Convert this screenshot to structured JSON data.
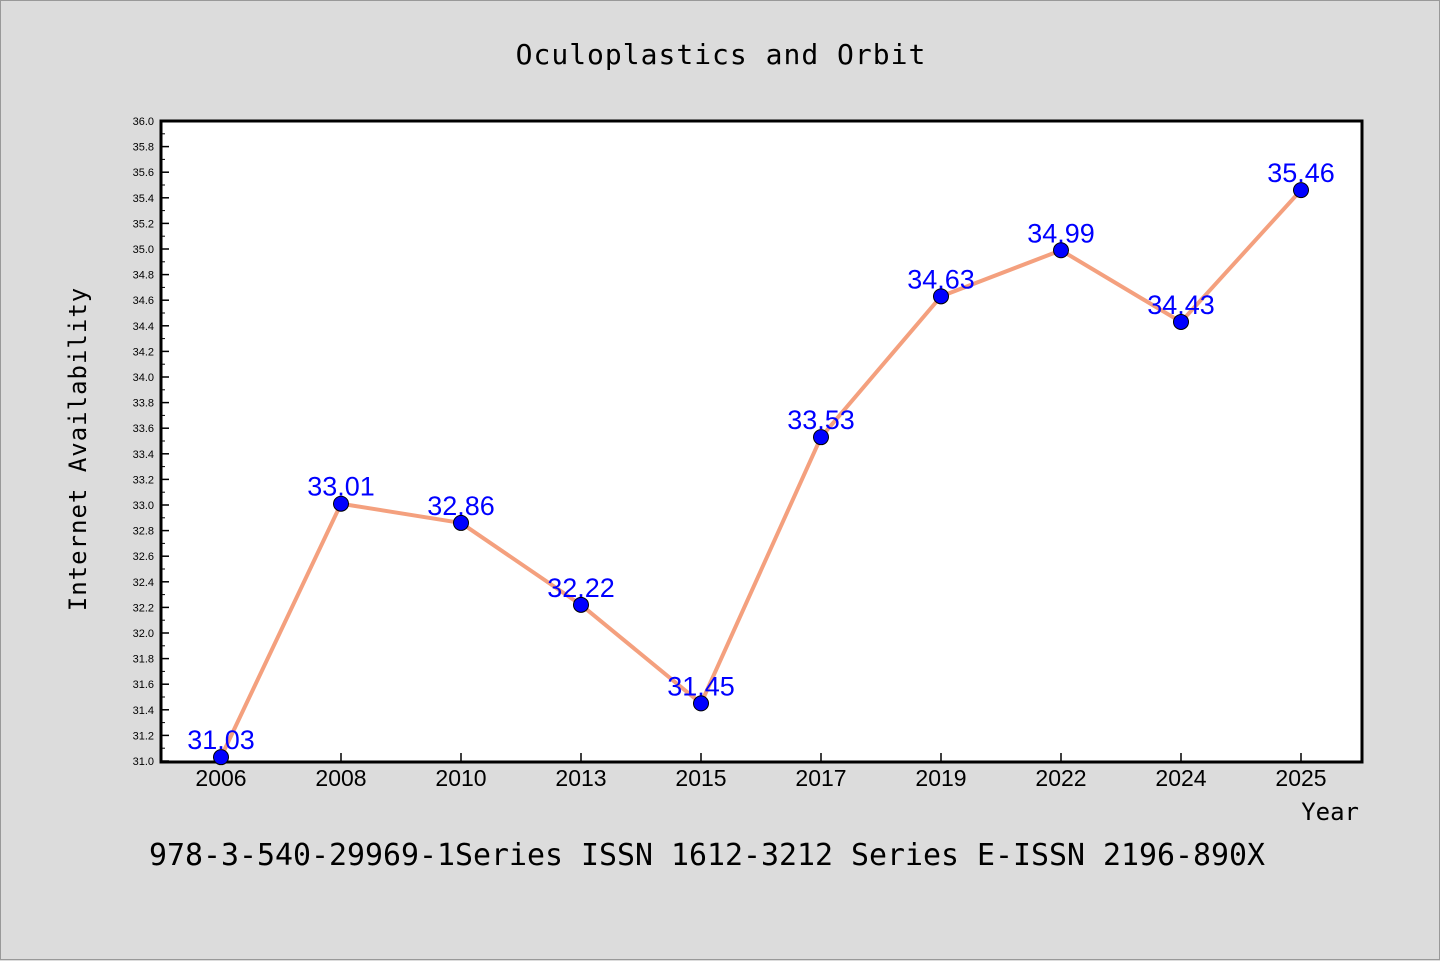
{
  "chart_data": {
    "type": "line",
    "title": "Oculoplastics and Orbit",
    "xlabel": "Year",
    "ylabel": "Internet Availability",
    "categories": [
      "2006",
      "2008",
      "2010",
      "2013",
      "2015",
      "2017",
      "2019",
      "2022",
      "2024",
      "2025"
    ],
    "series": [
      {
        "values": [
          31.03,
          33.01,
          32.86,
          32.22,
          31.45,
          33.53,
          34.63,
          34.99,
          34.43,
          35.46
        ],
        "line_color": "#f4a07e",
        "marker_color": "#0000ff",
        "label_color": "#0000ff"
      }
    ],
    "data_labels": [
      "31.03",
      "33.01",
      "32.86",
      "32.22",
      "31.45",
      "33.53",
      "34.63",
      "34.99",
      "34.43",
      "35.46"
    ],
    "ylim": [
      31.0,
      36.0
    ],
    "yticks": [
      "31.0",
      "31.2",
      "31.4",
      "31.6",
      "31.8",
      "32.0",
      "32.2",
      "32.4",
      "32.6",
      "32.8",
      "33.0",
      "33.2",
      "33.4",
      "33.6",
      "33.8",
      "34.0",
      "34.2",
      "34.4",
      "34.6",
      "34.8",
      "35.0",
      "35.2",
      "35.4",
      "35.6",
      "35.8",
      "36.0"
    ],
    "grid": false,
    "legend": "none"
  },
  "footer": "978-3-540-29969-1Series ISSN 1612-3212 Series E-ISSN 2196-890X",
  "colors": {
    "background": "#dcdcdc",
    "plot_background": "#ffffff",
    "axis": "#000000",
    "line": "#f4a07e",
    "marker": "#0000ff"
  }
}
